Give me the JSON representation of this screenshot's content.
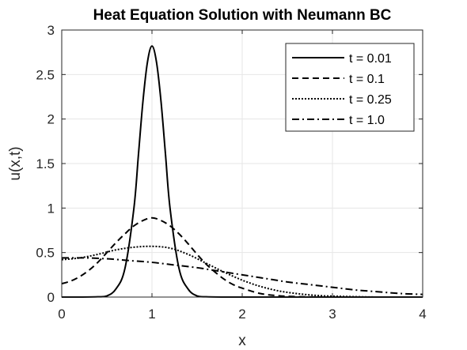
{
  "chart_data": {
    "type": "line",
    "title": "Heat Equation Solution with Neumann BC",
    "xlabel": "x",
    "ylabel": "u(x,t)",
    "xlim": [
      0,
      4
    ],
    "ylim": [
      0,
      3
    ],
    "xticks": [
      0,
      1,
      2,
      3,
      4
    ],
    "xtick_labels": [
      "0",
      "1",
      "2",
      "3",
      "4"
    ],
    "yticks": [
      0,
      0.5,
      1,
      1.5,
      2,
      2.5,
      3
    ],
    "ytick_labels": [
      "0",
      "0.5",
      "1",
      "1.5",
      "2",
      "2.5",
      "3"
    ],
    "grid": true,
    "legend_position": "top-right",
    "line_color": "#000000",
    "series": [
      {
        "name": "t = 0.01",
        "style": "solid",
        "x": [
          0,
          0.2,
          0.4,
          0.5,
          0.6,
          0.7,
          0.8,
          0.85,
          0.9,
          0.95,
          1.0,
          1.05,
          1.1,
          1.15,
          1.2,
          1.3,
          1.4,
          1.5,
          1.6,
          1.8,
          2.0,
          2.5,
          3.0,
          3.5,
          4.0
        ],
        "y": [
          0,
          0,
          0.003,
          0.013,
          0.09,
          0.32,
          1.0,
          1.6,
          2.2,
          2.64,
          2.82,
          2.64,
          2.2,
          1.6,
          1.0,
          0.32,
          0.09,
          0.013,
          0.003,
          0,
          0,
          0,
          0,
          0,
          0
        ]
      },
      {
        "name": "t = 0.1",
        "style": "dashed",
        "x": [
          0,
          0.1,
          0.2,
          0.3,
          0.4,
          0.5,
          0.6,
          0.7,
          0.8,
          0.9,
          1.0,
          1.1,
          1.2,
          1.3,
          1.4,
          1.5,
          1.6,
          1.7,
          1.8,
          1.9,
          2.0,
          2.2,
          2.4,
          2.6,
          3.0,
          3.5,
          4.0
        ],
        "y": [
          0.15,
          0.18,
          0.23,
          0.3,
          0.39,
          0.5,
          0.61,
          0.71,
          0.8,
          0.86,
          0.89,
          0.86,
          0.8,
          0.71,
          0.6,
          0.48,
          0.37,
          0.28,
          0.2,
          0.14,
          0.1,
          0.04,
          0.015,
          0.005,
          0,
          0,
          0
        ]
      },
      {
        "name": "t = 0.25",
        "style": "dotted",
        "x": [
          0,
          0.2,
          0.4,
          0.6,
          0.8,
          1.0,
          1.2,
          1.4,
          1.6,
          1.8,
          2.0,
          2.2,
          2.4,
          2.6,
          2.8,
          3.0,
          3.5,
          4.0
        ],
        "y": [
          0.42,
          0.44,
          0.48,
          0.53,
          0.56,
          0.57,
          0.55,
          0.48,
          0.38,
          0.28,
          0.19,
          0.12,
          0.07,
          0.04,
          0.02,
          0.01,
          0,
          0
        ]
      },
      {
        "name": "t = 1.0",
        "style": "dashdot",
        "x": [
          0,
          0.25,
          0.5,
          0.75,
          1.0,
          1.25,
          1.5,
          1.75,
          2.0,
          2.25,
          2.5,
          2.75,
          3.0,
          3.25,
          3.5,
          3.75,
          4.0
        ],
        "y": [
          0.44,
          0.44,
          0.43,
          0.41,
          0.39,
          0.36,
          0.33,
          0.29,
          0.25,
          0.21,
          0.17,
          0.14,
          0.11,
          0.08,
          0.06,
          0.04,
          0.03
        ]
      }
    ]
  }
}
